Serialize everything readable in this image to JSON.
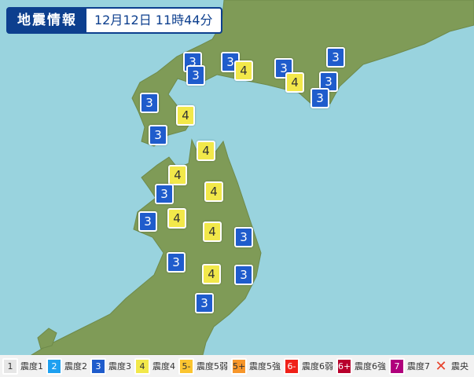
{
  "header": {
    "title": "地震情報",
    "datetime": "12月12日 11時44分"
  },
  "colors": {
    "sea": "#99d3de",
    "land": "#7f9b57",
    "int3": "#1f5ccc",
    "int4": "#f2e84a"
  },
  "markers": [
    {
      "intensity": "3"
    },
    {
      "intensity": "3"
    },
    {
      "intensity": "4"
    },
    {
      "intensity": "3"
    },
    {
      "intensity": "3"
    },
    {
      "intensity": "3"
    },
    {
      "intensity": "4"
    },
    {
      "intensity": "3"
    },
    {
      "intensity": "3"
    },
    {
      "intensity": "3"
    },
    {
      "intensity": "4"
    },
    {
      "intensity": "3"
    },
    {
      "intensity": "4"
    },
    {
      "intensity": "4"
    },
    {
      "intensity": "3"
    },
    {
      "intensity": "4"
    },
    {
      "intensity": "3"
    },
    {
      "intensity": "4"
    },
    {
      "intensity": "4"
    },
    {
      "intensity": "3"
    },
    {
      "intensity": "3"
    },
    {
      "intensity": "4"
    },
    {
      "intensity": "3"
    },
    {
      "intensity": "3"
    }
  ],
  "legend": [
    {
      "sym": "1",
      "label": "震度1",
      "bg": "#e6e6e6",
      "fg": "#333"
    },
    {
      "sym": "2",
      "label": "震度2",
      "bg": "#1ea0f0",
      "fg": "#fff"
    },
    {
      "sym": "3",
      "label": "震度3",
      "bg": "#1f5ccc",
      "fg": "#fff"
    },
    {
      "sym": "4",
      "label": "震度4",
      "bg": "#f2e84a",
      "fg": "#333"
    },
    {
      "sym": "5-",
      "label": "震度5弱",
      "bg": "#fbc530",
      "fg": "#333"
    },
    {
      "sym": "5+",
      "label": "震度5強",
      "bg": "#f7962a",
      "fg": "#333"
    },
    {
      "sym": "6-",
      "label": "震度6弱",
      "bg": "#f02018",
      "fg": "#fff"
    },
    {
      "sym": "6+",
      "label": "震度6強",
      "bg": "#b8002c",
      "fg": "#fff"
    },
    {
      "sym": "7",
      "label": "震度7",
      "bg": "#b0007c",
      "fg": "#fff"
    },
    {
      "sym": "✕",
      "label": "震央",
      "bg": "transparent",
      "fg": "#e8432c"
    }
  ]
}
